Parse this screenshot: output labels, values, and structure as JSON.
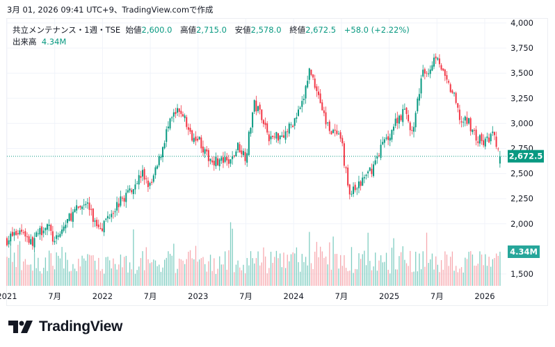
{
  "caption": "3月 01, 2026 09:41 UTC+9、TradingView.comで作成",
  "legend": {
    "symbol": "共立メンテナンス・1週・TSE",
    "open_label": "始値",
    "open": "2,600.0",
    "high_label": "高値",
    "high": "2,715.0",
    "low_label": "安値",
    "low": "2,578.0",
    "close_label": "終値",
    "close": "2,672.5",
    "change": "+58.0 (+2.22%)",
    "volume_label": "出来高",
    "volume": "4.34M"
  },
  "logo_text": "TradingView",
  "colors": {
    "up": "#089981",
    "down": "#f23645",
    "up_vol": "#7fcdc1",
    "down_vol": "#f7a9af"
  },
  "chart_data": {
    "type": "candlestick",
    "interval": "weekly",
    "ylim": [
      1350,
      4000
    ],
    "y_ticks": [
      "4,000",
      "3,750",
      "3,500",
      "3,250",
      "3,000",
      "2,750",
      "2,500",
      "2,250",
      "2,000",
      "1,500"
    ],
    "y_tick_values": [
      4000,
      3750,
      3500,
      3250,
      3000,
      2750,
      2500,
      2250,
      2000,
      1500
    ],
    "x_ticks": [
      {
        "label": "2021",
        "month_index": 0
      },
      {
        "label": "7月",
        "month_index": 6
      },
      {
        "label": "2022",
        "month_index": 12
      },
      {
        "label": "7月",
        "month_index": 18
      },
      {
        "label": "2023",
        "month_index": 24
      },
      {
        "label": "7月",
        "month_index": 30
      },
      {
        "label": "2024",
        "month_index": 36
      },
      {
        "label": "7月",
        "month_index": 42
      },
      {
        "label": "2025",
        "month_index": 48
      },
      {
        "label": "7月",
        "month_index": 54
      },
      {
        "label": "2026",
        "month_index": 60
      }
    ],
    "monthly_approx_close": [
      1840,
      1900,
      1945,
      1805,
      1900,
      2010,
      1800,
      1950,
      2080,
      2150,
      2220,
      2010,
      1980,
      2120,
      2200,
      2290,
      2400,
      2500,
      2360,
      2600,
      2910,
      3085,
      3120,
      2880,
      2880,
      2670,
      2635,
      2620,
      2600,
      2775,
      2670,
      3190,
      3085,
      2845,
      2880,
      2910,
      3015,
      3155,
      3535,
      3330,
      3015,
      2910,
      2810,
      2290,
      2360,
      2465,
      2570,
      2775,
      2880,
      3050,
      3120,
      2880,
      3465,
      3535,
      3710,
      3430,
      3295,
      3015,
      3015,
      2845,
      2810,
      2880,
      2672.5
    ],
    "last_price": 2672.5,
    "last_price_label": "2,672.5",
    "last_volume_millions": 4.34,
    "last_volume_label": "4.34M"
  }
}
